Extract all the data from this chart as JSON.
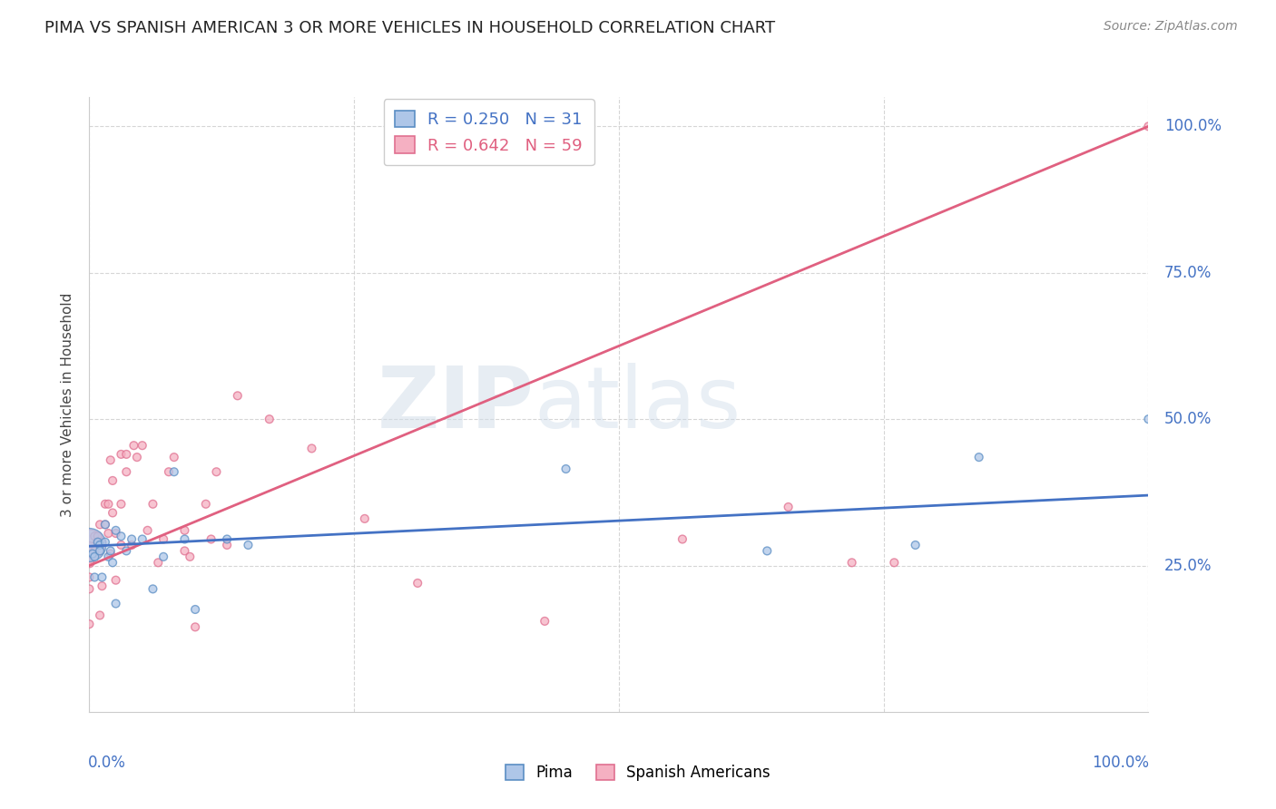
{
  "title": "PIMA VS SPANISH AMERICAN 3 OR MORE VEHICLES IN HOUSEHOLD CORRELATION CHART",
  "source": "Source: ZipAtlas.com",
  "ylabel": "3 or more Vehicles in Household",
  "watermark": "ZIPatlas",
  "pima_R": "0.250",
  "pima_N": "31",
  "spanish_R": "0.642",
  "spanish_N": "59",
  "pima_color": "#aec6e8",
  "pima_edge_color": "#5b8ec4",
  "pima_line_color": "#4472c4",
  "spanish_color": "#f5b0c2",
  "spanish_edge_color": "#e07090",
  "spanish_line_color": "#e06080",
  "background_color": "#ffffff",
  "grid_color": "#cccccc",
  "pima_x": [
    0.0,
    0.003,
    0.005,
    0.005,
    0.008,
    0.01,
    0.01,
    0.012,
    0.015,
    0.015,
    0.018,
    0.02,
    0.022,
    0.025,
    0.025,
    0.03,
    0.035,
    0.04,
    0.05,
    0.06,
    0.07,
    0.08,
    0.09,
    0.1,
    0.13,
    0.15,
    0.45,
    0.64,
    0.78,
    0.84,
    1.0
  ],
  "pima_y": [
    0.285,
    0.27,
    0.265,
    0.23,
    0.29,
    0.285,
    0.275,
    0.23,
    0.32,
    0.29,
    0.265,
    0.275,
    0.255,
    0.185,
    0.31,
    0.3,
    0.275,
    0.295,
    0.295,
    0.21,
    0.265,
    0.41,
    0.295,
    0.175,
    0.295,
    0.285,
    0.415,
    0.275,
    0.285,
    0.435,
    0.5
  ],
  "pima_size": [
    700,
    40,
    40,
    40,
    40,
    40,
    40,
    40,
    40,
    40,
    40,
    40,
    40,
    40,
    40,
    40,
    40,
    40,
    40,
    40,
    40,
    40,
    40,
    40,
    40,
    40,
    40,
    40,
    40,
    40,
    40
  ],
  "spanish_x": [
    0.0,
    0.0,
    0.0,
    0.0,
    0.0,
    0.0,
    0.0,
    0.005,
    0.005,
    0.008,
    0.008,
    0.01,
    0.01,
    0.012,
    0.012,
    0.015,
    0.015,
    0.018,
    0.018,
    0.02,
    0.02,
    0.022,
    0.022,
    0.025,
    0.025,
    0.03,
    0.03,
    0.03,
    0.035,
    0.035,
    0.04,
    0.042,
    0.045,
    0.05,
    0.055,
    0.06,
    0.065,
    0.07,
    0.075,
    0.08,
    0.09,
    0.09,
    0.095,
    0.1,
    0.11,
    0.115,
    0.12,
    0.13,
    0.14,
    0.17,
    0.21,
    0.26,
    0.31,
    0.43,
    0.56,
    0.66,
    0.72,
    0.76,
    1.0
  ],
  "spanish_y": [
    0.285,
    0.275,
    0.265,
    0.255,
    0.23,
    0.21,
    0.15,
    0.3,
    0.275,
    0.3,
    0.29,
    0.165,
    0.32,
    0.29,
    0.215,
    0.355,
    0.32,
    0.355,
    0.305,
    0.27,
    0.43,
    0.395,
    0.34,
    0.305,
    0.225,
    0.44,
    0.355,
    0.285,
    0.44,
    0.41,
    0.285,
    0.455,
    0.435,
    0.455,
    0.31,
    0.355,
    0.255,
    0.295,
    0.41,
    0.435,
    0.31,
    0.275,
    0.265,
    0.145,
    0.355,
    0.295,
    0.41,
    0.285,
    0.54,
    0.5,
    0.45,
    0.33,
    0.22,
    0.155,
    0.295,
    0.35,
    0.255,
    0.255,
    1.0
  ],
  "spanish_size": [
    600,
    200,
    100,
    60,
    40,
    40,
    40,
    40,
    40,
    40,
    40,
    40,
    40,
    40,
    40,
    40,
    40,
    40,
    40,
    40,
    40,
    40,
    40,
    40,
    40,
    40,
    40,
    40,
    40,
    40,
    40,
    40,
    40,
    40,
    40,
    40,
    40,
    40,
    40,
    40,
    40,
    40,
    40,
    40,
    40,
    40,
    40,
    40,
    40,
    40,
    40,
    40,
    40,
    40,
    40,
    40,
    40,
    40,
    40
  ],
  "xlim": [
    0.0,
    1.0
  ],
  "ylim": [
    0.0,
    1.05
  ],
  "xtick_positions": [
    0.0,
    0.25,
    0.5,
    0.75,
    1.0
  ],
  "ytick_positions": [
    0.25,
    0.5,
    0.75,
    1.0
  ],
  "ytick_right_labels": [
    "25.0%",
    "50.0%",
    "75.0%",
    "100.0%"
  ],
  "pima_line_x0": 0.0,
  "pima_line_y0": 0.283,
  "pima_line_x1": 1.0,
  "pima_line_y1": 0.37,
  "spanish_line_x0": 0.0,
  "spanish_line_y0": 0.25,
  "spanish_line_x1": 1.0,
  "spanish_line_y1": 1.0,
  "title_fontsize": 13,
  "axis_label_fontsize": 11,
  "tick_label_fontsize": 12,
  "legend_fontsize": 13
}
